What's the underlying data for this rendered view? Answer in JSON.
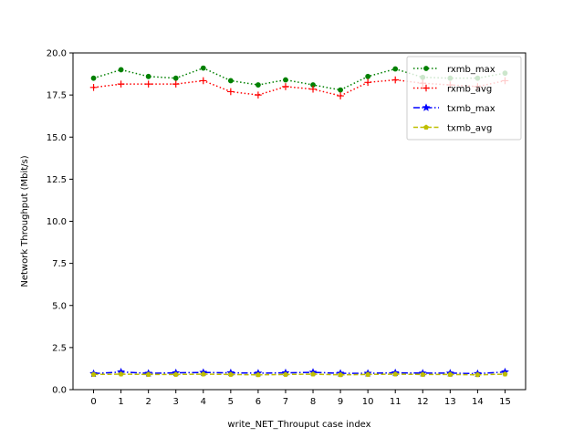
{
  "chart_data": {
    "type": "line",
    "title": "",
    "xlabel": "write_NET_Throuput case index",
    "ylabel": "Network Throughput (Mbit/s)",
    "x": [
      0,
      1,
      2,
      3,
      4,
      5,
      6,
      7,
      8,
      9,
      10,
      11,
      12,
      13,
      14,
      15
    ],
    "xticks": [
      "0",
      "1",
      "2",
      "3",
      "4",
      "5",
      "6",
      "7",
      "8",
      "9",
      "10",
      "11",
      "12",
      "13",
      "14",
      "15"
    ],
    "xlim": [
      -0.75,
      15.75
    ],
    "ylim": [
      0,
      20
    ],
    "yticks": [
      "0.0",
      "2.5",
      "5.0",
      "7.5",
      "10.0",
      "12.5",
      "15.0",
      "17.5",
      "20.0"
    ],
    "ytick_values": [
      0,
      2.5,
      5,
      7.5,
      10,
      12.5,
      15,
      17.5,
      20
    ],
    "grid": false,
    "legend_position": "top-right",
    "series": [
      {
        "name": "rxmb_max",
        "color": "#008000",
        "linestyle": "dotted",
        "marker": "point",
        "values": [
          18.5,
          19.0,
          18.6,
          18.5,
          19.1,
          18.35,
          18.1,
          18.4,
          18.1,
          17.8,
          18.6,
          19.05,
          18.55,
          18.5,
          18.5,
          18.8
        ]
      },
      {
        "name": "rxmb_avg",
        "color": "#ff0000",
        "linestyle": "dotted",
        "marker": "plus",
        "values": [
          17.95,
          18.15,
          18.15,
          18.15,
          18.35,
          17.7,
          17.5,
          18.0,
          17.85,
          17.45,
          18.25,
          18.4,
          18.2,
          18.1,
          18.0,
          18.35
        ]
      },
      {
        "name": "txmb_max",
        "color": "#0000ff",
        "linestyle": "dashdot",
        "marker": "star",
        "values": [
          0.95,
          1.05,
          0.97,
          1.0,
          1.02,
          1.0,
          0.98,
          1.0,
          1.03,
          0.97,
          0.97,
          1.0,
          0.98,
          0.98,
          0.95,
          1.05
        ]
      },
      {
        "name": "txmb_avg",
        "color": "#bfbf00",
        "linestyle": "dashed",
        "marker": "pentagon",
        "values": [
          0.9,
          0.92,
          0.9,
          0.9,
          0.92,
          0.9,
          0.88,
          0.9,
          0.92,
          0.88,
          0.9,
          0.92,
          0.9,
          0.9,
          0.88,
          0.92
        ]
      }
    ]
  }
}
